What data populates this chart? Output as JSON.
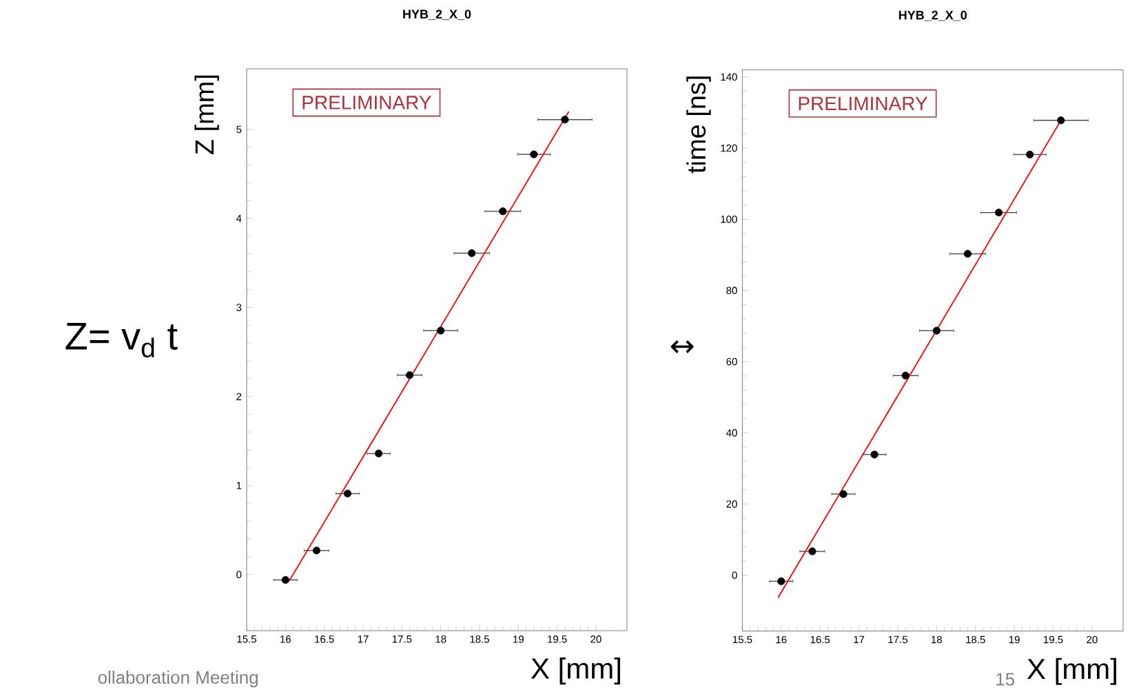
{
  "chart_data": [
    {
      "type": "scatter",
      "title": "HYB_2_X_0",
      "xlabel": "X [mm]",
      "ylabel": "Z [mm]",
      "xlim": [
        15.5,
        20.4
      ],
      "ylim": [
        -0.63,
        5.68
      ],
      "xticks": [
        15.5,
        16,
        16.5,
        17,
        17.5,
        18,
        18.5,
        19,
        19.5,
        20
      ],
      "yticks": [
        0,
        1,
        2,
        3,
        4,
        5
      ],
      "annotations": [
        "PRELIMINARY",
        "Z= v$_{d}$ t",
        "ollaboration Meeting"
      ],
      "series": [
        {
          "type": "scatter",
          "marker": "circle",
          "color": "#000000",
          "x": [
            16.0,
            16.4,
            16.8,
            17.2,
            17.6,
            18.0,
            18.4,
            18.8,
            19.2,
            19.6
          ],
          "values": [
            -0.06,
            0.27,
            0.91,
            1.36,
            2.24,
            2.74,
            3.61,
            4.08,
            4.72,
            5.11
          ],
          "xerrors": [
            0.15,
            0.16,
            0.15,
            0.15,
            0.16,
            0.22,
            0.23,
            0.23,
            0.21,
            0.35
          ]
        },
        {
          "type": "line",
          "marker": "none",
          "color": "#ff0000",
          "x": [
            16.05,
            19.65
          ],
          "values": [
            -0.07,
            5.2
          ]
        }
      ]
    },
    {
      "type": "scatter",
      "title": "HYB_2_X_0",
      "xlabel": "X [mm]",
      "ylabel": "time [ns]",
      "xlim": [
        15.5,
        20.4
      ],
      "ylim": [
        -15.7,
        142
      ],
      "xticks": [
        15.5,
        16,
        16.5,
        17,
        17.5,
        18,
        18.5,
        19,
        19.5,
        20
      ],
      "yticks": [
        0,
        20,
        40,
        60,
        80,
        100,
        120,
        140
      ],
      "annotations": [
        "PRELIMINARY",
        "↔",
        "15"
      ],
      "series": [
        {
          "type": "scatter",
          "marker": "circle",
          "color": "#000000",
          "x": [
            16.0,
            16.4,
            16.8,
            17.2,
            17.6,
            18.0,
            18.4,
            18.8,
            19.2,
            19.6
          ],
          "values": [
            -1.7,
            6.7,
            22.8,
            33.9,
            56.1,
            68.7,
            90.3,
            101.9,
            118.2,
            127.8
          ],
          "xerrors": [
            0.15,
            0.16,
            0.15,
            0.15,
            0.16,
            0.22,
            0.23,
            0.23,
            0.21,
            0.35
          ]
        },
        {
          "type": "line",
          "marker": "none",
          "color": "#ff0000",
          "x": [
            15.96,
            19.6
          ],
          "values": [
            -6.3,
            127.8
          ]
        }
      ]
    }
  ]
}
